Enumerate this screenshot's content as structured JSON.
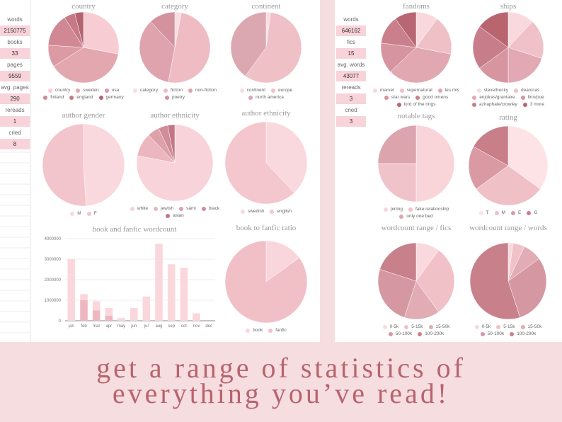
{
  "stats_left": [
    {
      "label": "words",
      "value": 2150775
    },
    {
      "label": "books",
      "value": 33
    },
    {
      "label": "pages",
      "value": 9559
    },
    {
      "label": "avg. pages",
      "value": 290
    },
    {
      "label": "rereads",
      "value": 1
    },
    {
      "label": "cried",
      "value": 8
    }
  ],
  "stats_right": [
    {
      "label": "words",
      "value": 646162
    },
    {
      "label": "fics",
      "value": 15
    },
    {
      "label": "avg. words",
      "value": 43077
    },
    {
      "label": "rereads",
      "value": 3
    },
    {
      "label": "cried",
      "value": 3
    }
  ],
  "banner": {
    "line1": "get a range of statistics of",
    "line2": "everything you’ve read!"
  },
  "chart_data": [
    {
      "type": "pie",
      "title": "country",
      "categories": [
        "country",
        "sweden",
        "usa",
        "finland",
        "england",
        "germany"
      ],
      "values": [
        28,
        38,
        10,
        15,
        5,
        4
      ],
      "colors": [
        "#f7cdd3",
        "#e3a7b0",
        "#dc9aa5",
        "#d08894",
        "#c57a86",
        "#b46471"
      ]
    },
    {
      "type": "pie",
      "title": "category",
      "categories": [
        "category",
        "fiction",
        "non-fiction",
        "poetry"
      ],
      "values": [
        3,
        50,
        35,
        12
      ],
      "colors": [
        "#f9dde1",
        "#efbcc4",
        "#dea3ad",
        "#d3929d"
      ]
    },
    {
      "type": "pie",
      "title": "continent",
      "categories": [
        "continent",
        "europe",
        "north america"
      ],
      "values": [
        2,
        58,
        40
      ],
      "colors": [
        "#f9dde1",
        "#f0c0c7",
        "#dba7b0"
      ]
    },
    {
      "type": "pie",
      "title": "author gender",
      "categories": [
        "M",
        "F"
      ],
      "values": [
        49,
        51
      ],
      "colors": [
        "#fad9de",
        "#f2c4cb"
      ]
    },
    {
      "type": "pie",
      "title": "author ethnicity",
      "categories": [
        "white",
        "jewish",
        "sámi",
        "black",
        "asian"
      ],
      "values": [
        78,
        10,
        5,
        4,
        3
      ],
      "colors": [
        "#f8d3d9",
        "#ebb6be",
        "#dea1aa",
        "#d08c97",
        "#c27783"
      ]
    },
    {
      "type": "pie",
      "title": "author ethnicity",
      "categories": [
        "swedish",
        "english"
      ],
      "values": [
        38,
        62
      ],
      "colors": [
        "#fad9de",
        "#f4c6cd"
      ]
    },
    {
      "type": "bar",
      "title": "book and fanfic wordcount",
      "categories": [
        "jan",
        "feb",
        "mar",
        "apr",
        "may",
        "jun",
        "jul",
        "aug",
        "sep",
        "oct",
        "nov",
        "dec"
      ],
      "series": [
        {
          "color": "#eeb7bf",
          "values": [
            0,
            1000000,
            500000,
            250000,
            0,
            0,
            0,
            0,
            0,
            0,
            0,
            0
          ]
        },
        {
          "color": "#fad7dc",
          "values": [
            3000000,
            300000,
            450000,
            370000,
            130000,
            620000,
            1180000,
            3750000,
            2750000,
            2580000,
            360000,
            0
          ]
        }
      ],
      "ylim": [
        0,
        4000000
      ],
      "yticks": [
        0,
        1000000,
        2000000,
        3000000,
        4000000
      ],
      "grid": true
    },
    {
      "type": "pie",
      "title": "book to fanfic ratio",
      "categories": [
        "book",
        "fanfic"
      ],
      "values": [
        15,
        85
      ],
      "colors": [
        "#f9d6db",
        "#f1c0c7"
      ]
    },
    {
      "type": "pie",
      "title": "fandoms",
      "categories": [
        "marvel",
        "supernatural",
        "les mis",
        "star wars",
        "good omens",
        "lord of the rings"
      ],
      "values": [
        10,
        18,
        35,
        14,
        13,
        10
      ],
      "colors": [
        "#f9d8dd",
        "#f0c0c7",
        "#e1a8b1",
        "#d5949f",
        "#c9808c",
        "#b86671"
      ]
    },
    {
      "type": "pie",
      "title": "ships",
      "categories": [
        "steve/bucky",
        "dean/cas",
        "enjolras/grantaire",
        "finn/poe",
        "aziraphale/crowley",
        "3 more"
      ],
      "values": [
        12,
        18,
        20,
        15,
        20,
        15
      ],
      "colors": [
        "#fad9de",
        "#f0c1c8",
        "#e2a9b2",
        "#d6959f",
        "#c87e8a",
        "#b86570"
      ]
    },
    {
      "type": "pie",
      "title": "notable tags",
      "categories": [
        "pining",
        "fake relationship",
        "only one bed"
      ],
      "values": [
        50,
        25,
        25
      ],
      "colors": [
        "#f9d5da",
        "#f0c3ca",
        "#dca4ad"
      ]
    },
    {
      "type": "pie",
      "title": "rating",
      "categories": [
        "T",
        "M",
        "E",
        "G"
      ],
      "values": [
        35,
        30,
        18,
        17
      ],
      "colors": [
        "#fde3e6",
        "#f0c0c7",
        "#d99aa4",
        "#c97f8a"
      ]
    },
    {
      "type": "pie",
      "title": "wordcount range / fics",
      "categories": [
        "0-5k",
        "5-15k",
        "15-50k",
        "50-100k",
        "100-200k"
      ],
      "values": [
        10,
        30,
        15,
        25,
        20
      ],
      "colors": [
        "#fad9de",
        "#f1c1c8",
        "#e2acb4",
        "#d598a2",
        "#c8808b"
      ]
    },
    {
      "type": "pie",
      "title": "wordcount range / words",
      "categories": [
        "0-5k",
        "5-15k",
        "15-50k",
        "50-100k",
        "100-200k"
      ],
      "values": [
        2,
        5,
        8,
        30,
        55
      ],
      "colors": [
        "#fad9de",
        "#f1c1c8",
        "#e2acb4",
        "#d598a2",
        "#c8808b"
      ]
    }
  ]
}
